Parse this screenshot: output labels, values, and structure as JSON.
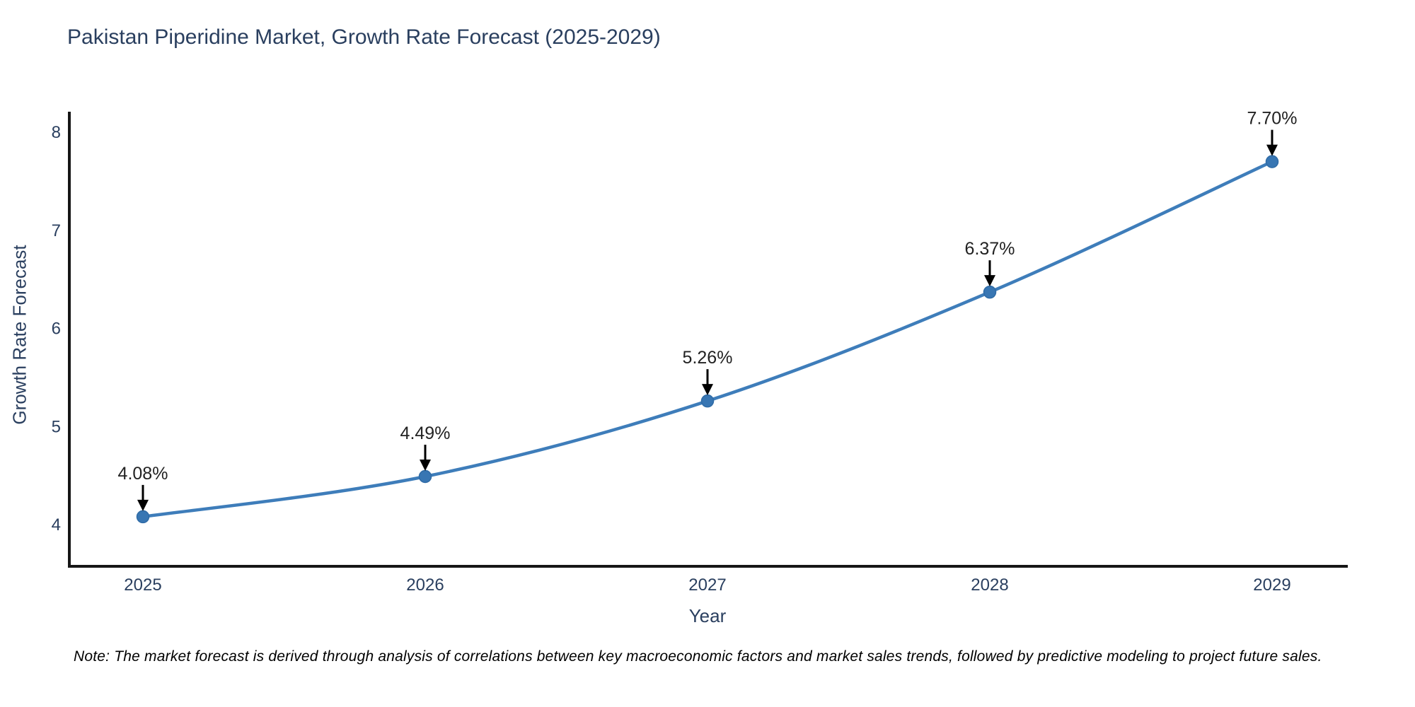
{
  "title": "Pakistan Piperidine Market, Growth Rate Forecast (2025-2029)",
  "note": "Note: The market forecast is derived through analysis of correlations between key macroeconomic factors and market sales trends, followed by predictive modeling to project future sales.",
  "chart_data": {
    "type": "line",
    "title": "Pakistan Piperidine Market, Growth Rate Forecast (2025-2029)",
    "xlabel": "Year",
    "ylabel": "Growth Rate Forecast",
    "x": [
      2025,
      2026,
      2027,
      2028,
      2029
    ],
    "values": [
      4.08,
      4.49,
      5.26,
      6.37,
      7.7
    ],
    "point_labels": [
      "4.08%",
      "4.49%",
      "5.26%",
      "6.37%",
      "7.70%"
    ],
    "yticks": [
      4,
      5,
      6,
      7,
      8
    ],
    "xticks": [
      "2025",
      "2026",
      "2027",
      "2028",
      "2029"
    ],
    "ylim": [
      3.58,
      8.32
    ],
    "grid": false,
    "legend": false,
    "colors": {
      "line": "#3e7dba",
      "marker_fill": "#3876b3",
      "marker_edge": "#2f6ba6",
      "axis": "#161616",
      "axis_text": "#2a3f5f",
      "annotation_text": "#222222",
      "arrow": "#000000",
      "title_text": "#2a3f5f",
      "note_text": "#000000",
      "background": "#ffffff"
    }
  }
}
